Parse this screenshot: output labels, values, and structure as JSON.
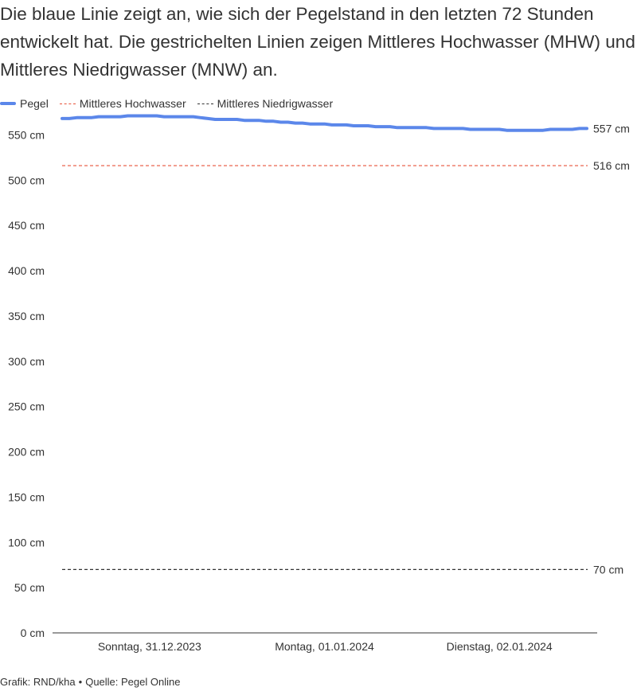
{
  "subtitle": "Die blaue Linie zeigt an, wie sich der Pegelstand in den letzten 72 Stunden entwickelt hat. Die gestrichelten Linien zeigen Mittleres Hochwasser (MHW) und Mittleres Niedrigwasser (MNW) an.",
  "legend": [
    {
      "label": "Pegel",
      "style": "solid",
      "color": "#5b87ea"
    },
    {
      "label": "Mittleres Hochwasser",
      "style": "dashed",
      "color": "#e8533a"
    },
    {
      "label": "Mittleres Niedrigwasser",
      "style": "dashed",
      "color": "#333333"
    }
  ],
  "footer": {
    "credit": "Grafik: RND/kha",
    "separator": "•",
    "source": "Quelle: Pegel Online"
  },
  "chart_data": {
    "type": "line",
    "title": "",
    "xlabel": "",
    "ylabel": "",
    "ylim": [
      0,
      560
    ],
    "y_ticks": [
      0,
      50,
      100,
      150,
      200,
      250,
      300,
      350,
      400,
      450,
      500,
      550
    ],
    "y_unit": " cm",
    "grid": false,
    "legend_position": "top-left",
    "x_ticks": [
      {
        "label": "Sonntag, 31.12.2023",
        "hour": 12
      },
      {
        "label": "Montag, 01.01.2024",
        "hour": 36
      },
      {
        "label": "Dienstag, 02.01.2024",
        "hour": 60
      }
    ],
    "x_range_hours": [
      0,
      72
    ],
    "series": [
      {
        "name": "Pegel",
        "color": "#5b87ea",
        "end_label": "557 cm",
        "x_hours": [
          0,
          1,
          2,
          3,
          4,
          5,
          6,
          7,
          8,
          9,
          10,
          11,
          12,
          13,
          14,
          15,
          16,
          17,
          18,
          19,
          20,
          21,
          22,
          23,
          24,
          25,
          26,
          27,
          28,
          29,
          30,
          31,
          32,
          33,
          34,
          35,
          36,
          37,
          38,
          39,
          40,
          41,
          42,
          43,
          44,
          45,
          46,
          47,
          48,
          49,
          50,
          51,
          52,
          53,
          54,
          55,
          56,
          57,
          58,
          59,
          60,
          61,
          62,
          63,
          64,
          65,
          66,
          67,
          68,
          69,
          70,
          71,
          72
        ],
        "values": [
          568,
          568,
          569,
          569,
          569,
          570,
          570,
          570,
          570,
          571,
          571,
          571,
          571,
          571,
          570,
          570,
          570,
          570,
          570,
          569,
          568,
          567,
          567,
          567,
          567,
          566,
          566,
          566,
          565,
          565,
          564,
          564,
          563,
          563,
          562,
          562,
          562,
          561,
          561,
          561,
          560,
          560,
          560,
          559,
          559,
          559,
          558,
          558,
          558,
          558,
          558,
          557,
          557,
          557,
          557,
          557,
          556,
          556,
          556,
          556,
          556,
          555,
          555,
          555,
          555,
          555,
          555,
          556,
          556,
          556,
          556,
          557,
          557
        ]
      }
    ],
    "reference_lines": [
      {
        "name": "Mittleres Hochwasser",
        "value": 516,
        "label": "516 cm",
        "color": "#e8533a"
      },
      {
        "name": "Mittleres Niedrigwasser",
        "value": 70,
        "label": "70 cm",
        "color": "#333333"
      }
    ]
  }
}
